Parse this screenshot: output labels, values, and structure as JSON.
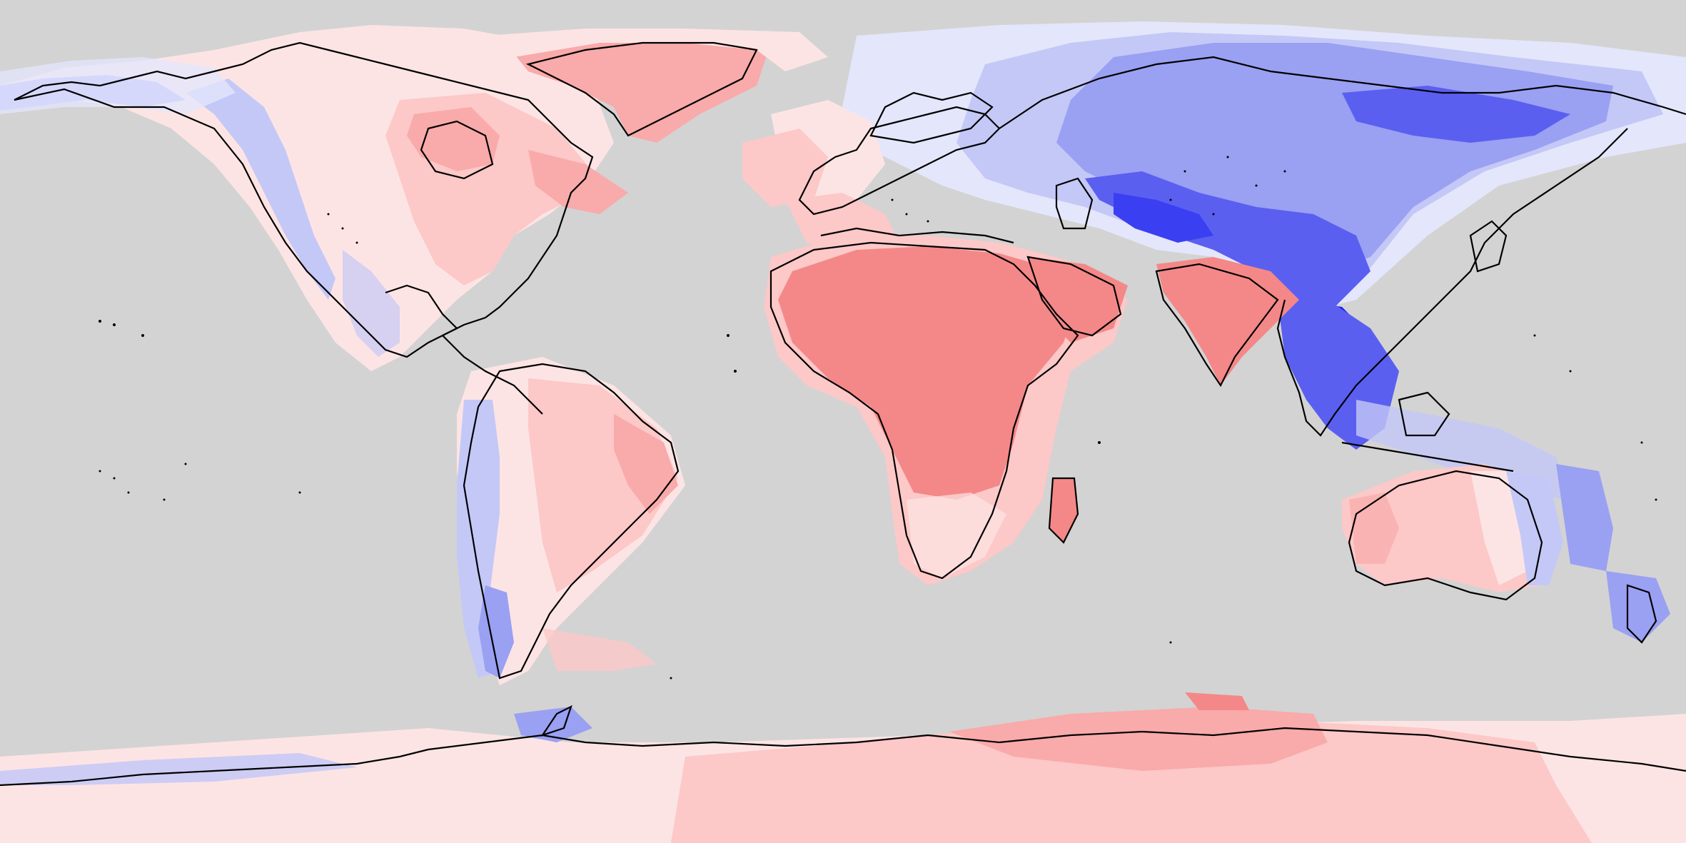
{
  "map": {
    "projection": "equirectangular",
    "colors": {
      "background": "#d3d3d3",
      "coastline": "#000000",
      "red_strong": "#f48888",
      "red_mid": "#f9aaaa",
      "red_light": "#fcc8c8",
      "red_faint": "#fde4e4",
      "blue_faint": "#e4e6fb",
      "blue_light": "#c4c8f7",
      "blue_mid": "#9aa0f2",
      "blue_strong": "#5a5ff0",
      "blue_deep": "#1a1ef5"
    }
  }
}
